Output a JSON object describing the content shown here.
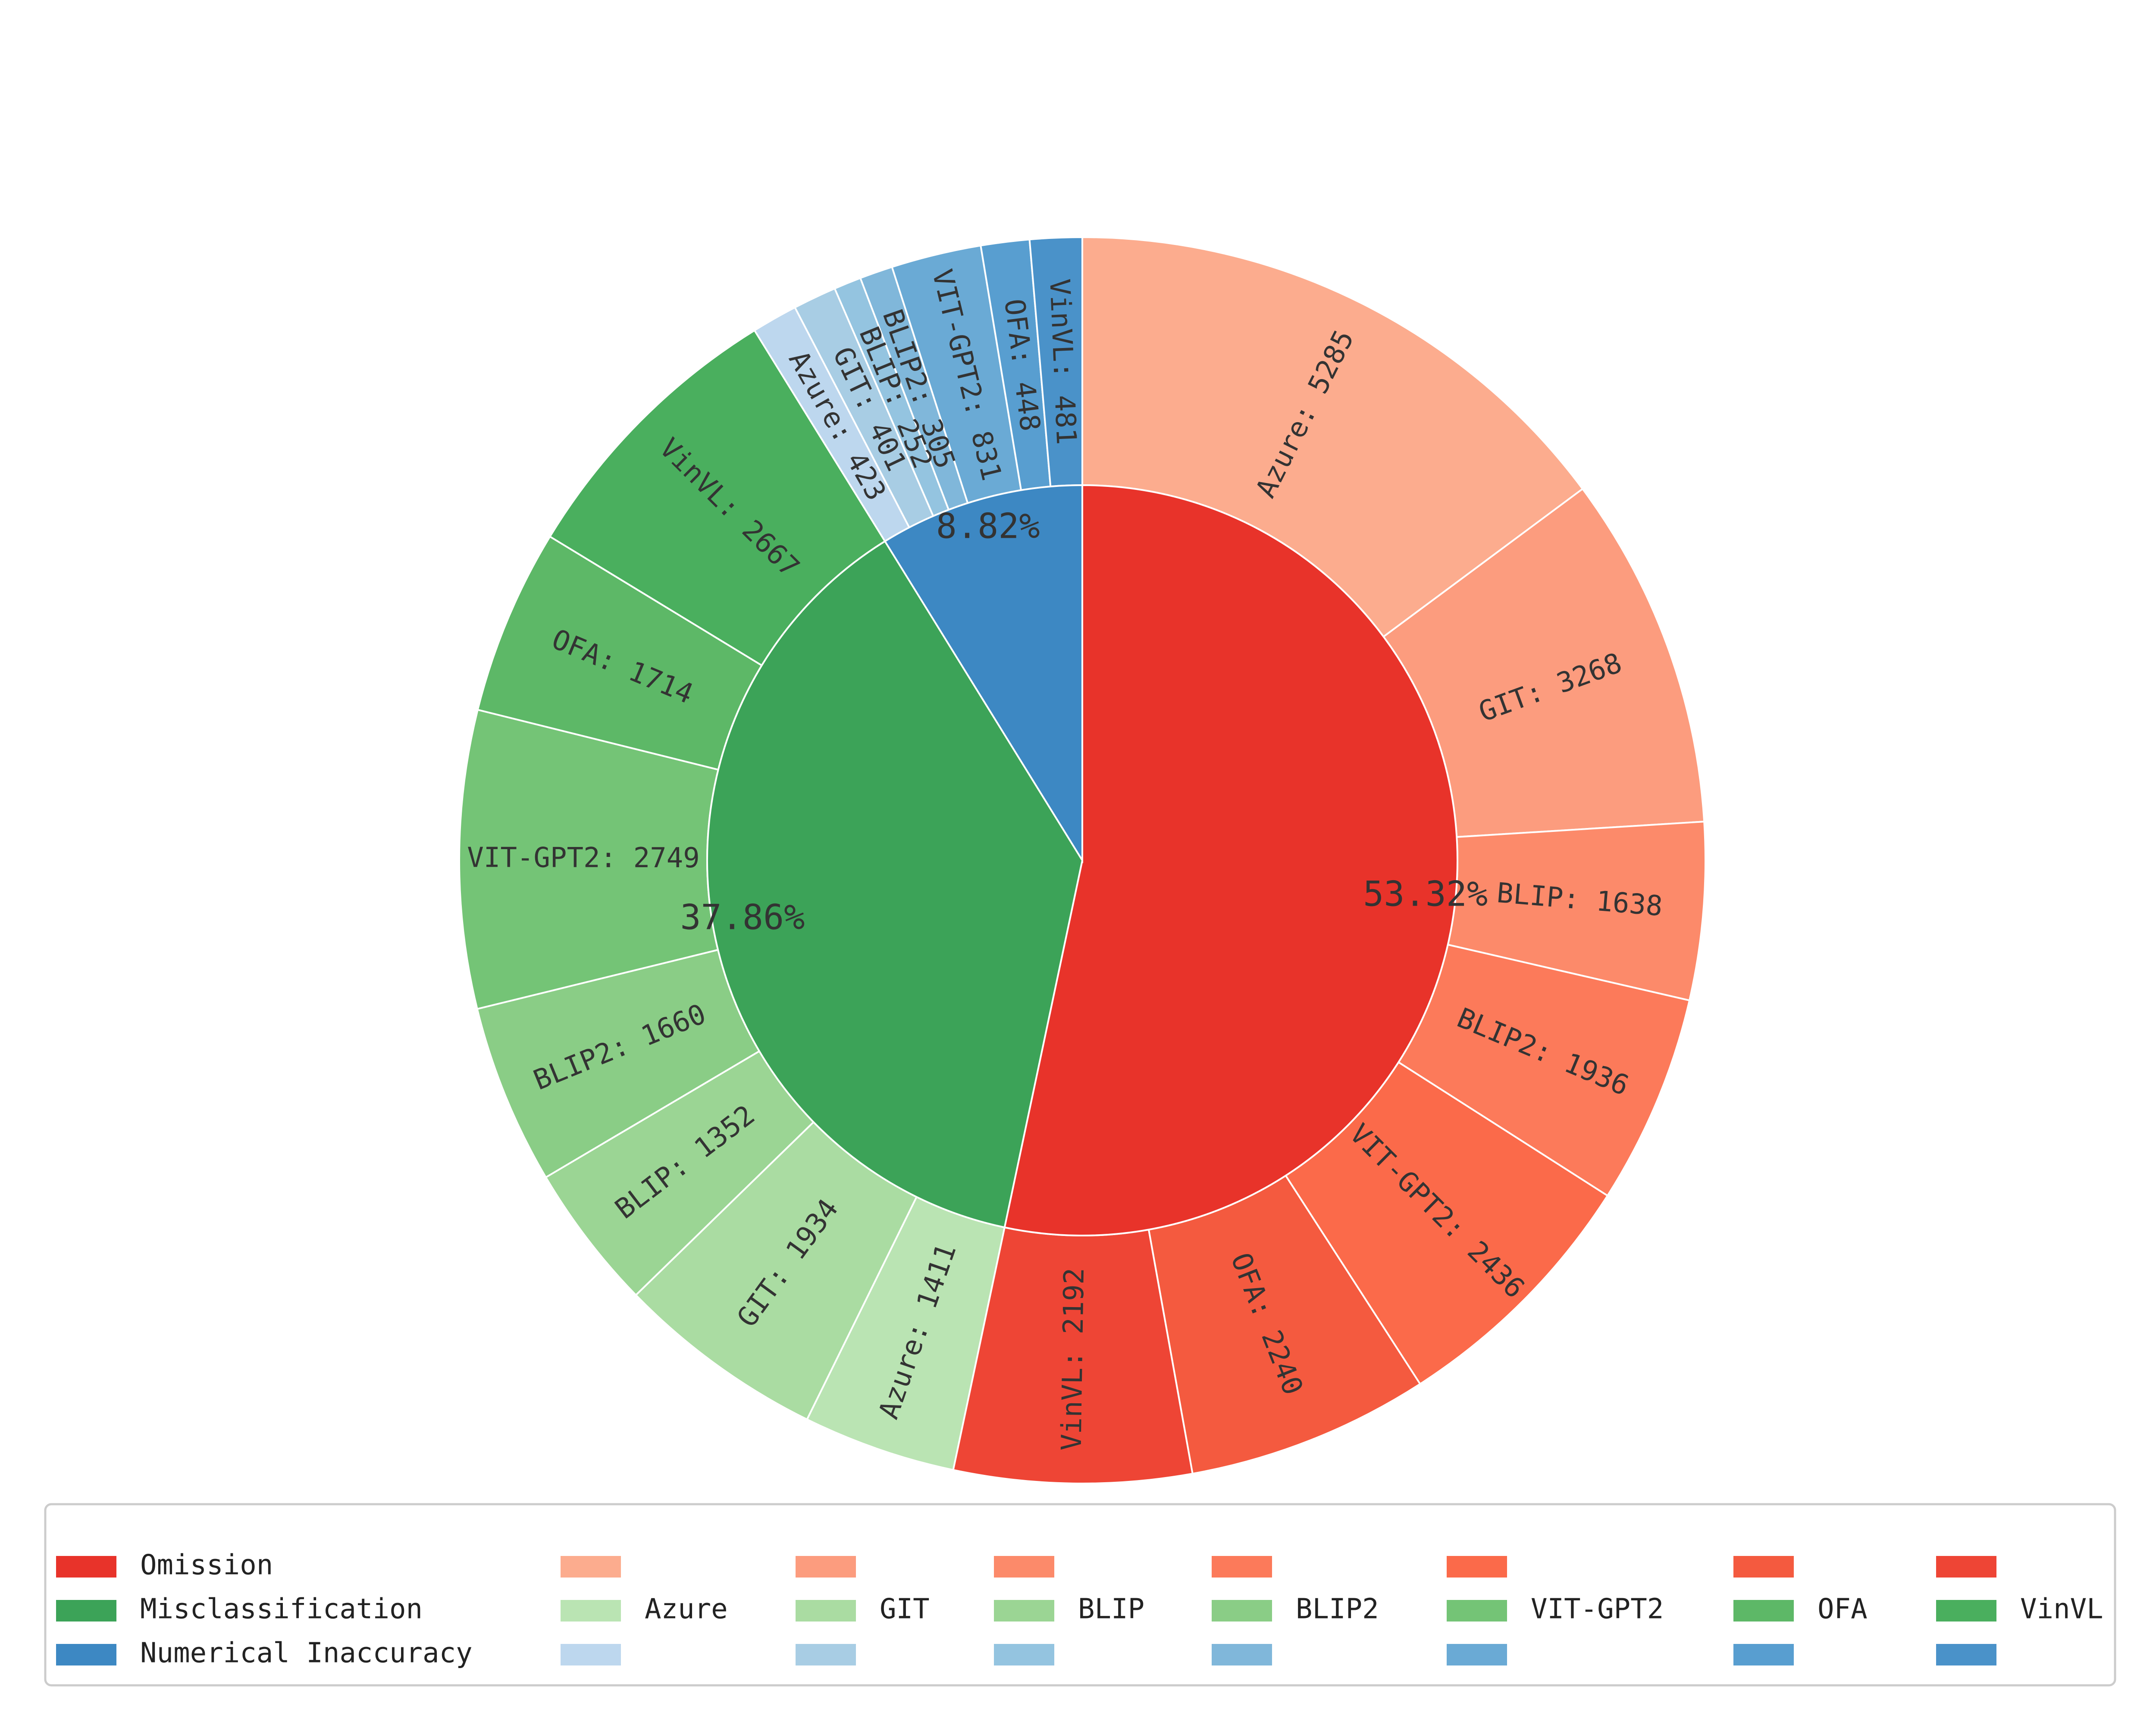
{
  "chart_data": {
    "type": "pie",
    "subtype": "nested-donut",
    "title": "",
    "categories": [
      "Omission",
      "Misclassification",
      "Numerical Inaccuracy"
    ],
    "inner": [
      {
        "name": "Omission",
        "percent_label": "53.32%",
        "color": "#e8332a"
      },
      {
        "name": "Misclassification",
        "percent_label": "37.86%",
        "color": "#3ca358"
      },
      {
        "name": "Numerical Inaccuracy",
        "percent_label": "8.82%",
        "color": "#3d88c3"
      }
    ],
    "models": [
      "Azure",
      "GIT",
      "BLIP",
      "BLIP2",
      "VIT-GPT2",
      "OFA",
      "VinVL"
    ],
    "outer": [
      {
        "category": "Omission",
        "model": "Azure",
        "value": 5285,
        "label": "Azure: 5285",
        "color": "#fcac8e"
      },
      {
        "category": "Omission",
        "model": "GIT",
        "value": 3268,
        "label": "GIT: 3268",
        "color": "#fc9c7e"
      },
      {
        "category": "Omission",
        "model": "BLIP",
        "value": 1638,
        "label": "BLIP: 1638",
        "color": "#fc8a6a"
      },
      {
        "category": "Omission",
        "model": "BLIP2",
        "value": 1936,
        "label": "BLIP2: 1936",
        "color": "#fc7a5a"
      },
      {
        "category": "Omission",
        "model": "VIT-GPT2",
        "value": 2436,
        "label": "VIT-GPT2: 2436",
        "color": "#fb6a4a"
      },
      {
        "category": "Omission",
        "model": "OFA",
        "value": 2240,
        "label": "OFA: 2240",
        "color": "#f45a3f"
      },
      {
        "category": "Omission",
        "model": "VinVL",
        "value": 2192,
        "label": "VinVL: 2192",
        "color": "#ee4535"
      },
      {
        "category": "Misclassification",
        "model": "Azure",
        "value": 1411,
        "label": "Azure: 1411",
        "color": "#bae4b3"
      },
      {
        "category": "Misclassification",
        "model": "GIT",
        "value": 1934,
        "label": "GIT: 1934",
        "color": "#aadca2"
      },
      {
        "category": "Misclassification",
        "model": "BLIP",
        "value": 1352,
        "label": "BLIP: 1352",
        "color": "#9bd594"
      },
      {
        "category": "Misclassification",
        "model": "BLIP2",
        "value": 1660,
        "label": "BLIP2: 1660",
        "color": "#8acd86"
      },
      {
        "category": "Misclassification",
        "model": "VIT-GPT2",
        "value": 2749,
        "label": "VIT-GPT2: 2749",
        "color": "#74c476"
      },
      {
        "category": "Misclassification",
        "model": "OFA",
        "value": 1714,
        "label": "OFA: 1714",
        "color": "#5db867"
      },
      {
        "category": "Misclassification",
        "model": "VinVL",
        "value": 2667,
        "label": "VinVL: 2667",
        "color": "#4aaf5e"
      },
      {
        "category": "Numerical Inaccuracy",
        "model": "Azure",
        "value": 423,
        "label": "Azure: 423",
        "color": "#bdd7ee"
      },
      {
        "category": "Numerical Inaccuracy",
        "model": "GIT",
        "value": 401,
        "label": "GIT: 401",
        "color": "#a8cde4"
      },
      {
        "category": "Numerical Inaccuracy",
        "model": "BLIP",
        "value": 252,
        "label": "BLIP: 252",
        "color": "#94c4e0"
      },
      {
        "category": "Numerical Inaccuracy",
        "model": "BLIP2",
        "value": 305,
        "label": "BLIP2: 305",
        "color": "#80b7da"
      },
      {
        "category": "Numerical Inaccuracy",
        "model": "VIT-GPT2",
        "value": 831,
        "label": "VIT-GPT2: 831",
        "color": "#6aaad5"
      },
      {
        "category": "Numerical Inaccuracy",
        "model": "OFA",
        "value": 448,
        "label": "OFA: 448",
        "color": "#589ed0"
      },
      {
        "category": "Numerical Inaccuracy",
        "model": "VinVL",
        "value": 481,
        "label": "VinVL: 481",
        "color": "#4a92c9"
      }
    ],
    "start_angle": "top (12 o'clock)",
    "direction": "clockwise",
    "legend": {
      "placement": "bottom",
      "rows": [
        [
          {
            "label": "Omission",
            "color": "#e8332a"
          },
          {
            "label": "",
            "color": "#fcac8e"
          },
          {
            "label": "",
            "color": "#fc9c7e"
          },
          {
            "label": "",
            "color": "#fc8a6a"
          },
          {
            "label": "",
            "color": "#fc7a5a"
          },
          {
            "label": "",
            "color": "#fb6a4a"
          },
          {
            "label": "",
            "color": "#f45a3f"
          },
          {
            "label": "",
            "color": "#ee4535"
          }
        ],
        [
          {
            "label": "Misclassification",
            "color": "#3ca358"
          },
          {
            "label": "Azure",
            "color": "#bae4b3"
          },
          {
            "label": "GIT",
            "color": "#aadca2"
          },
          {
            "label": "BLIP",
            "color": "#9bd594"
          },
          {
            "label": "BLIP2",
            "color": "#8acd86"
          },
          {
            "label": "VIT-GPT2",
            "color": "#74c476"
          },
          {
            "label": "OFA",
            "color": "#5db867"
          },
          {
            "label": "VinVL",
            "color": "#4aaf5e"
          }
        ],
        [
          {
            "label": "Numerical Inaccuracy",
            "color": "#3d88c3"
          },
          {
            "label": "",
            "color": "#bdd7ee"
          },
          {
            "label": "",
            "color": "#a8cde4"
          },
          {
            "label": "",
            "color": "#94c4e0"
          },
          {
            "label": "",
            "color": "#80b7da"
          },
          {
            "label": "",
            "color": "#6aaad5"
          },
          {
            "label": "",
            "color": "#589ed0"
          },
          {
            "label": "",
            "color": "#4a92c9"
          }
        ]
      ]
    }
  }
}
